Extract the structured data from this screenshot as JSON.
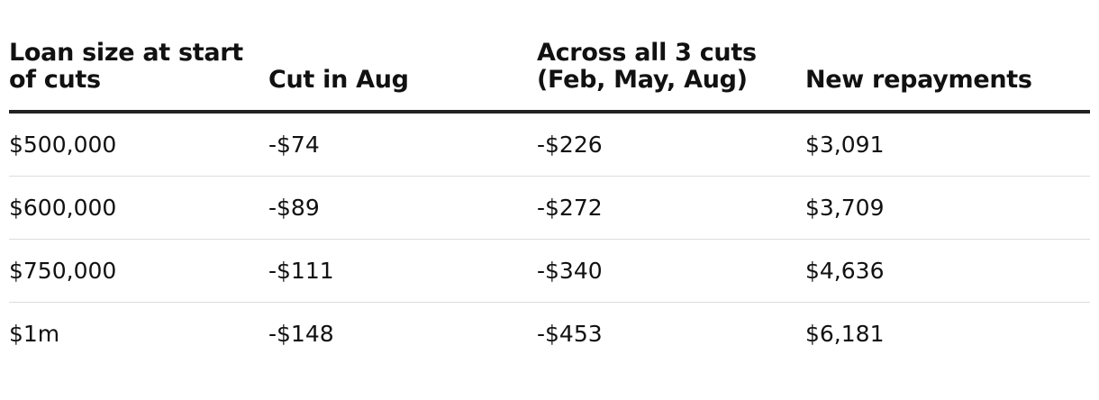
{
  "table": {
    "header": [
      "Loan size at start of cuts",
      "Cut in Aug",
      "Across all 3 cuts (Feb, May, Aug)",
      "New repayments"
    ],
    "rows": [
      [
        "$500,000",
        "-$74",
        "-$226",
        "$3,091"
      ],
      [
        "$600,000",
        "-$89",
        "-$272",
        "$3,709"
      ],
      [
        "$750,000",
        "-$111",
        "-$340",
        "$4,636"
      ],
      [
        "$1m",
        "-$148",
        "-$453",
        "$6,181"
      ]
    ]
  }
}
